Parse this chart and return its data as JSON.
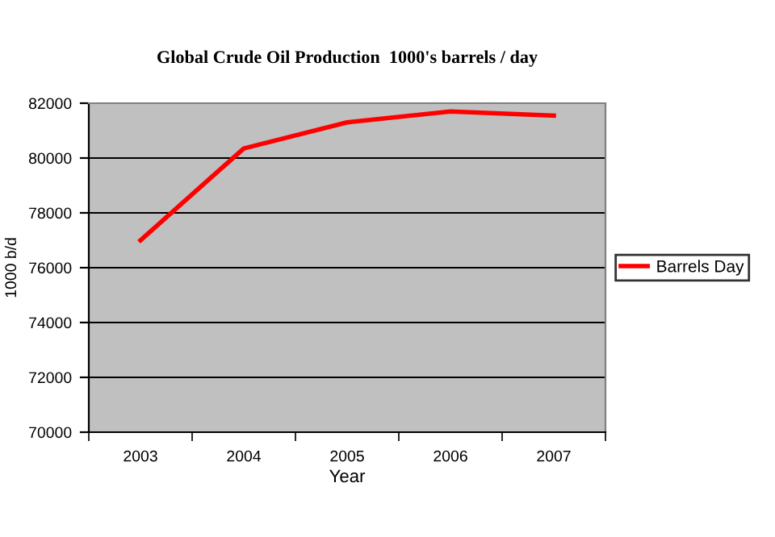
{
  "chart_data": {
    "type": "line",
    "title": "Global Crude Oil Production  1000's barrels / day",
    "xlabel": "Year",
    "ylabel": "1000 b/d",
    "categories": [
      "2003",
      "2004",
      "2005",
      "2006",
      "2007"
    ],
    "series": [
      {
        "name": "Barrels Day",
        "color": "#ff0000",
        "values": [
          77000,
          80350,
          81300,
          81700,
          81550
        ]
      }
    ],
    "ylim": [
      70000,
      82000
    ],
    "yticks": [
      70000,
      72000,
      74000,
      76000,
      78000,
      80000,
      82000
    ],
    "grid": "y",
    "legend": "right",
    "marker": "none",
    "line_style": "solid"
  }
}
